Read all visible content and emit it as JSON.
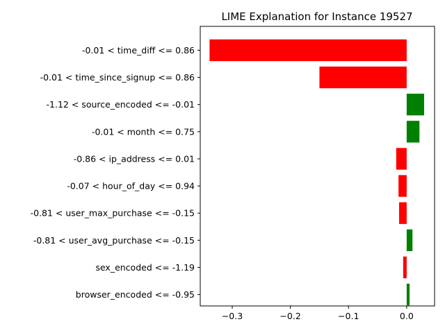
{
  "chart_data": {
    "type": "bar",
    "orientation": "horizontal",
    "title": "LIME Explanation for Instance 19527",
    "xlabel": "",
    "ylabel": "",
    "xlim": [
      -0.355,
      0.048
    ],
    "x_ticks": [
      -0.3,
      -0.2,
      -0.1,
      0.0
    ],
    "x_tick_labels": [
      "−0.3",
      "−0.2",
      "−0.1",
      "0.0"
    ],
    "grid": false,
    "legend": "none",
    "positive_color": "#008000",
    "negative_color": "#ff0000",
    "categories": [
      "-0.01 < time_diff <= 0.86",
      "-0.01 < time_since_signup <= 0.86",
      "-1.12 < source_encoded <= -0.01",
      "-0.01 < month <= 0.75",
      "-0.86 < ip_address <= 0.01",
      "-0.07 < hour_of_day <= 0.94",
      "-0.81 < user_max_purchase <= -0.15",
      "-0.81 < user_avg_purchase <= -0.15",
      "sex_encoded <= -1.19",
      "browser_encoded <= -0.95"
    ],
    "values": [
      -0.339,
      -0.15,
      0.03,
      0.022,
      -0.018,
      -0.014,
      -0.013,
      0.01,
      -0.006,
      0.005
    ]
  }
}
